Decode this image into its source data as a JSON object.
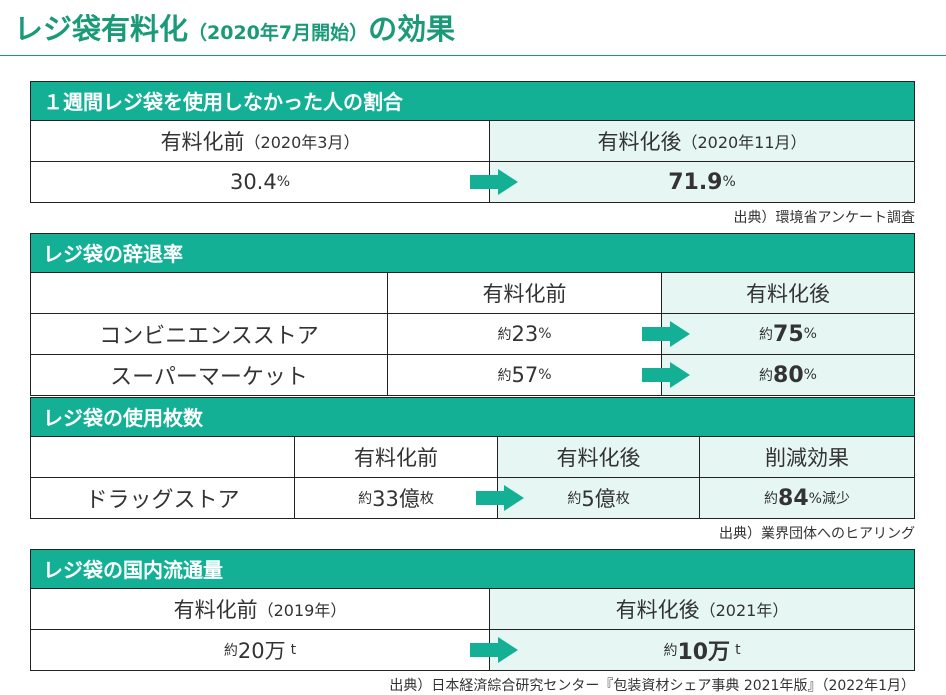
{
  "title": {
    "main": "レジ袋有料化",
    "period": "（2020年7月開始）",
    "suffix": "の効果"
  },
  "weekly": {
    "header": "１週間レジ袋を使用しなかった人の割合",
    "before_label": "有料化前",
    "before_date": "（2020年3月）",
    "after_label": "有料化後",
    "after_date": "（2020年11月）",
    "before_value": "30.4",
    "after_value": "71.9",
    "unit": "%",
    "source": "出典）環境省アンケート調査"
  },
  "refusal": {
    "header": "レジ袋の辞退率",
    "col_before": "有料化前",
    "col_after": "有料化後",
    "approx": "約",
    "unit": "%",
    "rows": [
      {
        "label": "コンビニエンスストア",
        "before": "23",
        "after": "75"
      },
      {
        "label": "スーパーマーケット",
        "before": "57",
        "after": "80"
      }
    ]
  },
  "usage": {
    "header": "レジ袋の使用枚数",
    "col_before": "有料化前",
    "col_after": "有料化後",
    "col_effect": "削減効果",
    "row_label": "ドラッグストア",
    "approx": "約",
    "before": "33億",
    "before_unit": "枚",
    "after": "5億",
    "after_unit": "枚",
    "effect": "84",
    "effect_unit": "%減少",
    "source": "出典）業界団体へのヒアリング"
  },
  "distribution": {
    "header": "レジ袋の国内流通量",
    "before_label": "有料化前",
    "before_date": "（2019年）",
    "after_label": "有料化後",
    "after_date": "（2021年）",
    "approx": "約",
    "before_value": "20万",
    "after_value": "10万",
    "unit": "t",
    "source": "出典）日本経済綜合研究センター『包装資材シェア事典 2021年版』（2022年1月）"
  }
}
